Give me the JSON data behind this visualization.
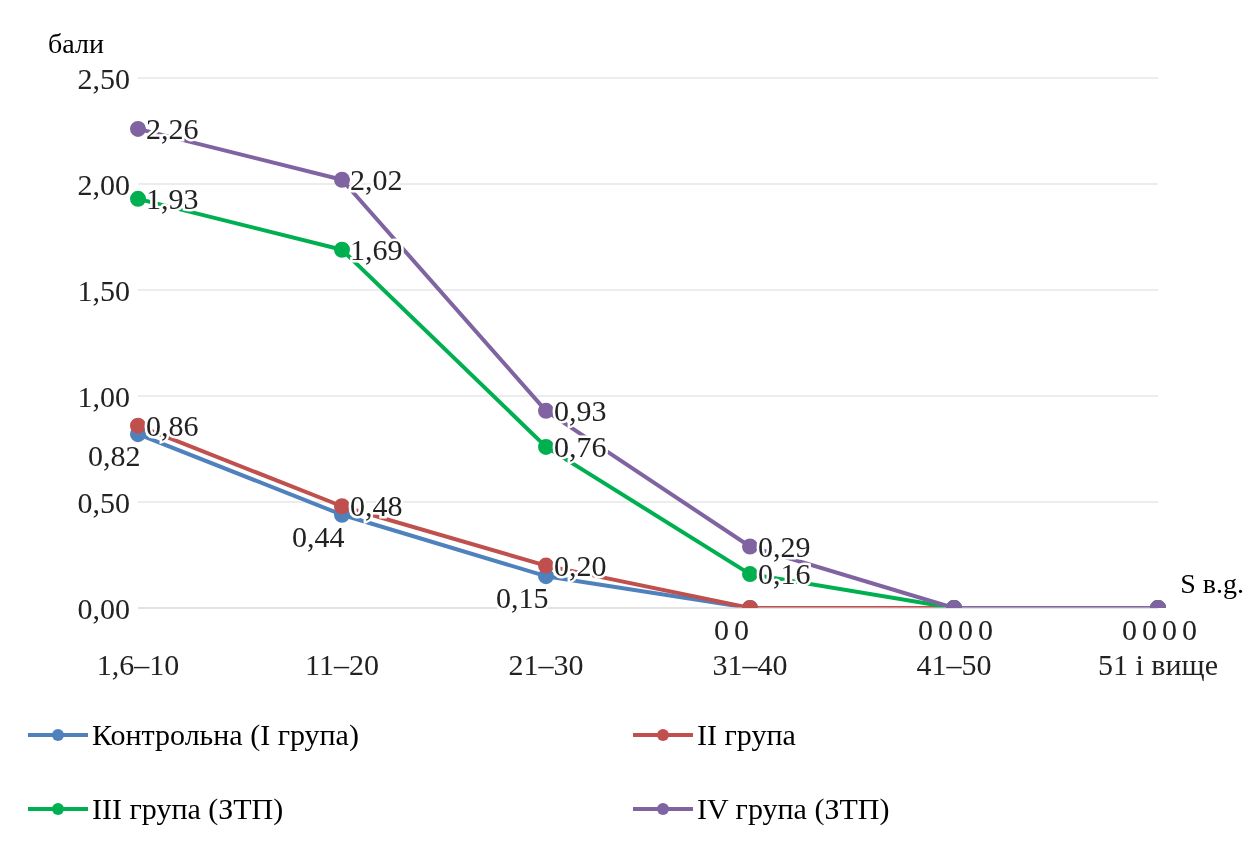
{
  "chart_data": {
    "type": "line",
    "ylabel": "бали",
    "xlabel": "S в.g.",
    "categories": [
      "1,6–10",
      "11–20",
      "21–30",
      "31–40",
      "41–50",
      "51 і вище"
    ],
    "series": [
      {
        "name": "Контрольна (І група)",
        "color": "#4f81bd",
        "values": [
          0.82,
          0.44,
          0.15,
          0,
          0,
          0
        ],
        "value_labels": [
          "0,82",
          "0,44",
          "0,15",
          "0",
          "0",
          "0"
        ]
      },
      {
        "name": "ІІ група",
        "color": "#c0504d",
        "values": [
          0.86,
          0.48,
          0.2,
          0,
          0,
          0
        ],
        "value_labels": [
          "0,86",
          "0,48",
          "0,20",
          "0",
          "0",
          "0"
        ]
      },
      {
        "name": "ІІІ група (ЗТП)",
        "color": "#00b050",
        "values": [
          1.93,
          1.69,
          0.76,
          0.16,
          0,
          0
        ],
        "value_labels": [
          "1,93",
          "1,69",
          "0,76",
          "0,16",
          "0",
          "0"
        ]
      },
      {
        "name": "ІV група (ЗТП)",
        "color": "#8064a2",
        "values": [
          2.26,
          2.02,
          0.93,
          0.29,
          0,
          0
        ],
        "value_labels": [
          "2,26",
          "2,02",
          "0,93",
          "0,29",
          "0",
          "0"
        ]
      }
    ],
    "ylim": [
      0,
      2.5
    ],
    "yticks": [
      {
        "value": 0,
        "label": "0,00"
      },
      {
        "value": 0.5,
        "label": "0,50"
      },
      {
        "value": 1,
        "label": "1,00"
      },
      {
        "value": 1.5,
        "label": "1,50"
      },
      {
        "value": 2,
        "label": "2,00"
      },
      {
        "value": 2.5,
        "label": "2,50"
      }
    ],
    "grid": "y",
    "legend": "bottom",
    "marker": "circle",
    "line_style": "solid"
  }
}
